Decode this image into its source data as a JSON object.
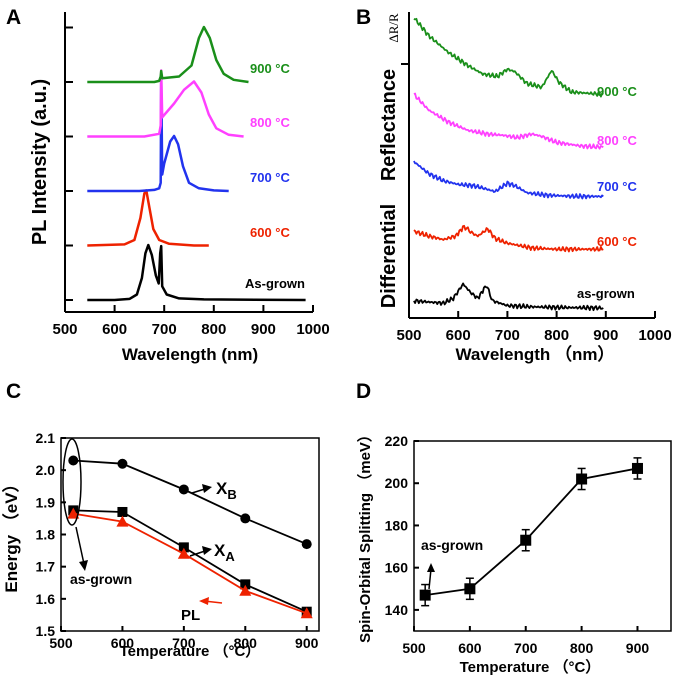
{
  "chart_data": [
    {
      "panel": "A",
      "type": "line",
      "xlabel": "Wavelength (nm)",
      "ylabel": "PL Intensity (a.u.)",
      "xlim": [
        500,
        1000
      ],
      "xticks": [
        "500",
        "600",
        "700",
        "800",
        "900",
        "1000"
      ],
      "series": [
        {
          "name": "As-grown",
          "label": "As-grown",
          "color": "#000000",
          "baseline": 0,
          "points": [
            [
              545,
              0.0
            ],
            [
              600,
              0.0
            ],
            [
              630,
              0.02
            ],
            [
              645,
              0.1
            ],
            [
              655,
              0.4
            ],
            [
              662,
              0.85
            ],
            [
              668,
              1.0
            ],
            [
              675,
              0.82
            ],
            [
              683,
              0.45
            ],
            [
              689,
              0.3
            ],
            [
              692,
              0.85
            ],
            [
              694,
              0.98
            ],
            [
              696,
              0.25
            ],
            [
              705,
              0.1
            ],
            [
              730,
              0.03
            ],
            [
              780,
              0.01
            ],
            [
              985,
              0.0
            ]
          ]
        },
        {
          "name": "600 °C",
          "label": "600 °C",
          "color": "#ee2200",
          "baseline": 1,
          "points": [
            [
              545,
              0.0
            ],
            [
              620,
              0.02
            ],
            [
              640,
              0.1
            ],
            [
              652,
              0.5
            ],
            [
              660,
              0.95
            ],
            [
              664,
              1.0
            ],
            [
              670,
              0.7
            ],
            [
              678,
              0.3
            ],
            [
              690,
              0.1
            ],
            [
              710,
              0.03
            ],
            [
              760,
              0.0
            ],
            [
              790,
              0.0
            ]
          ]
        },
        {
          "name": "700 °C",
          "label": "700 °C",
          "color": "#2233ee",
          "baseline": 2,
          "points": [
            [
              545,
              0.0
            ],
            [
              650,
              0.0
            ],
            [
              680,
              0.02
            ],
            [
              690,
              0.05
            ],
            [
              693,
              0.15
            ],
            [
              694,
              2.1
            ],
            [
              696,
              0.3
            ],
            [
              700,
              0.5
            ],
            [
              712,
              0.9
            ],
            [
              720,
              1.0
            ],
            [
              728,
              0.85
            ],
            [
              738,
              0.45
            ],
            [
              750,
              0.15
            ],
            [
              770,
              0.05
            ],
            [
              800,
              0.01
            ],
            [
              830,
              0.0
            ]
          ]
        },
        {
          "name": "800 °C",
          "label": "800 °C",
          "color": "#ff40ff",
          "baseline": 3,
          "points": [
            [
              545,
              0.0
            ],
            [
              660,
              0.0
            ],
            [
              690,
              0.05
            ],
            [
              693,
              0.2
            ],
            [
              694,
              1.2
            ],
            [
              696,
              0.35
            ],
            [
              720,
              0.6
            ],
            [
              740,
              0.85
            ],
            [
              760,
              1.0
            ],
            [
              775,
              0.8
            ],
            [
              790,
              0.4
            ],
            [
              805,
              0.15
            ],
            [
              830,
              0.03
            ],
            [
              860,
              0.0
            ]
          ]
        },
        {
          "name": "900 °C",
          "label": "900 °C",
          "color": "#1a8f1a",
          "baseline": 4,
          "points": [
            [
              545,
              0.0
            ],
            [
              680,
              0.0
            ],
            [
              690,
              0.02
            ],
            [
              693,
              0.1
            ],
            [
              694,
              0.2
            ],
            [
              696,
              0.07
            ],
            [
              730,
              0.1
            ],
            [
              755,
              0.3
            ],
            [
              770,
              0.8
            ],
            [
              780,
              1.0
            ],
            [
              792,
              0.8
            ],
            [
              805,
              0.4
            ],
            [
              820,
              0.15
            ],
            [
              840,
              0.04
            ],
            [
              870,
              0.0
            ]
          ]
        }
      ]
    },
    {
      "panel": "B",
      "type": "line",
      "xlabel": "Wavelength （nm）",
      "ylabel_parts": [
        "Differential",
        "Reflectance",
        "ΔR/R"
      ],
      "xlim": [
        500,
        1000
      ],
      "xticks": [
        "500",
        "600",
        "700",
        "800",
        "900",
        "1000"
      ],
      "series": [
        {
          "name": "as-grown",
          "label": "as-grown",
          "color": "#000000",
          "points": [
            [
              510,
              0.06
            ],
            [
              540,
              0.05
            ],
            [
              570,
              0.04
            ],
            [
              590,
              0.08
            ],
            [
              610,
              0.2
            ],
            [
              625,
              0.13
            ],
            [
              640,
              0.08
            ],
            [
              657,
              0.19
            ],
            [
              670,
              0.06
            ],
            [
              700,
              0.02
            ],
            [
              750,
              0.01
            ],
            [
              800,
              0.005
            ],
            [
              895,
              0.0
            ]
          ]
        },
        {
          "name": "600 °C",
          "label": "600 °C",
          "color": "#ee2200",
          "points": [
            [
              510,
              0.64
            ],
            [
              540,
              0.6
            ],
            [
              570,
              0.57
            ],
            [
              595,
              0.6
            ],
            [
              612,
              0.68
            ],
            [
              630,
              0.62
            ],
            [
              640,
              0.6
            ],
            [
              660,
              0.66
            ],
            [
              675,
              0.58
            ],
            [
              700,
              0.54
            ],
            [
              750,
              0.5
            ],
            [
              800,
              0.49
            ],
            [
              895,
              0.49
            ]
          ]
        },
        {
          "name": "700 °C",
          "label": "700 °C",
          "color": "#2233ee",
          "points": [
            [
              510,
              1.22
            ],
            [
              540,
              1.12
            ],
            [
              570,
              1.06
            ],
            [
              600,
              1.03
            ],
            [
              630,
              1.02
            ],
            [
              650,
              1.0
            ],
            [
              675,
              0.97
            ],
            [
              700,
              1.04
            ],
            [
              715,
              1.02
            ],
            [
              740,
              0.96
            ],
            [
              780,
              0.94
            ],
            [
              840,
              0.93
            ],
            [
              895,
              0.93
            ]
          ]
        },
        {
          "name": "800 °C",
          "label": "800 °C",
          "color": "#ff40ff",
          "points": [
            [
              510,
              1.78
            ],
            [
              540,
              1.65
            ],
            [
              580,
              1.55
            ],
            [
              620,
              1.48
            ],
            [
              660,
              1.45
            ],
            [
              690,
              1.44
            ],
            [
              720,
              1.42
            ],
            [
              750,
              1.45
            ],
            [
              770,
              1.43
            ],
            [
              800,
              1.38
            ],
            [
              850,
              1.35
            ],
            [
              895,
              1.34
            ]
          ]
        },
        {
          "name": "900 °C",
          "label": "900 °C",
          "color": "#1a8f1a",
          "points": [
            [
              510,
              2.42
            ],
            [
              540,
              2.27
            ],
            [
              580,
              2.13
            ],
            [
              620,
              2.02
            ],
            [
              650,
              1.95
            ],
            [
              680,
              1.93
            ],
            [
              700,
              1.99
            ],
            [
              715,
              1.97
            ],
            [
              740,
              1.87
            ],
            [
              770,
              1.84
            ],
            [
              790,
              1.98
            ],
            [
              805,
              1.88
            ],
            [
              830,
              1.8
            ],
            [
              895,
              1.78
            ]
          ]
        }
      ]
    },
    {
      "panel": "C",
      "type": "line",
      "xlabel": "Temperature （°C）",
      "ylabel": "Energy （eV）",
      "xlim": [
        500,
        920
      ],
      "ylim": [
        1.5,
        2.1
      ],
      "xticks": [
        500,
        600,
        700,
        800,
        900
      ],
      "yticks": [
        "1.5",
        "1.6",
        "1.7",
        "1.8",
        "1.9",
        "2.0",
        "2.1"
      ],
      "series": [
        {
          "name": "XB",
          "label_main": "X",
          "label_sub": "B",
          "color": "#000000",
          "marker": "circle",
          "x": [
            520,
            600,
            700,
            800,
            900
          ],
          "y": [
            2.03,
            2.02,
            1.94,
            1.85,
            1.77
          ]
        },
        {
          "name": "XA",
          "label_main": "X",
          "label_sub": "A",
          "color": "#000000",
          "marker": "square",
          "x": [
            520,
            600,
            700,
            800,
            900
          ],
          "y": [
            1.875,
            1.87,
            1.76,
            1.645,
            1.56
          ]
        },
        {
          "name": "PL",
          "label_main": "PL",
          "label_sub": "",
          "color": "#ee2200",
          "marker": "triangle",
          "x": [
            520,
            600,
            700,
            800,
            900
          ],
          "y": [
            1.865,
            1.84,
            1.74,
            1.625,
            1.555
          ]
        }
      ],
      "annotation": "as-grown"
    },
    {
      "panel": "D",
      "type": "line",
      "xlabel": "Temperature （°C）",
      "ylabel": "Spin-Orbital Splitting （meV）",
      "xlim": [
        500,
        960
      ],
      "ylim": [
        130,
        220
      ],
      "xticks": [
        500,
        600,
        700,
        800,
        900
      ],
      "yticks": [
        "140",
        "160",
        "180",
        "200",
        "220"
      ],
      "series": [
        {
          "name": "splitting",
          "color": "#000000",
          "marker": "square",
          "x": [
            520,
            600,
            700,
            800,
            900
          ],
          "y": [
            147,
            150,
            173,
            202,
            207
          ],
          "err": [
            5,
            5,
            5,
            5,
            5
          ]
        }
      ],
      "annotation": "as-grown"
    }
  ],
  "panel_labels": {
    "A": "A",
    "B": "B",
    "C": "C",
    "D": "D"
  },
  "colors": {
    "as_grown": "#000000",
    "c600": "#ee2200",
    "c700": "#2233ee",
    "c800": "#ff40ff",
    "c900": "#1a8f1a"
  }
}
